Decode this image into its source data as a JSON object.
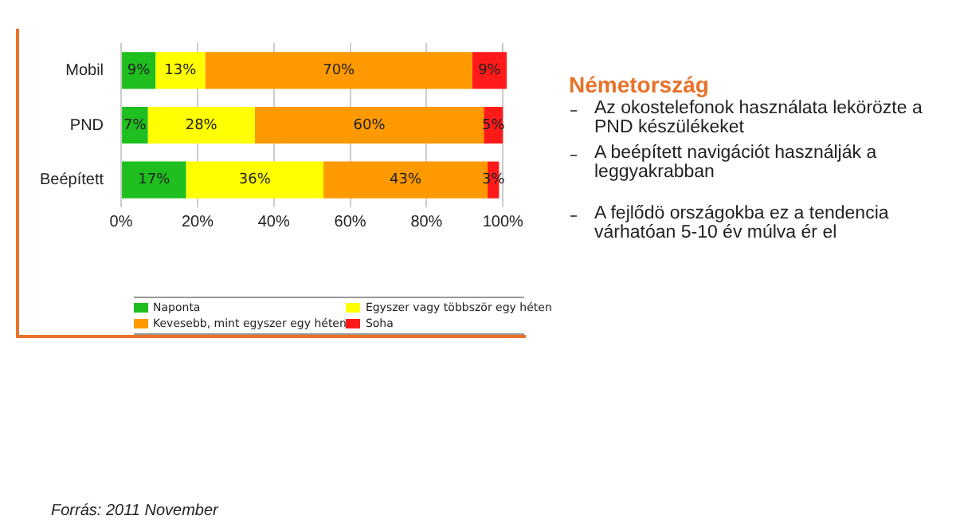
{
  "chart_data": {
    "type": "bar",
    "orientation": "horizontal",
    "stacked": true,
    "title": "Németország",
    "categories": [
      "Mobil",
      "PND",
      "Beépített"
    ],
    "series": [
      {
        "name": "Naponta",
        "color": "#1fbf1f",
        "values": [
          9,
          7,
          17
        ]
      },
      {
        "name": "Egyszer vagy többször egy héten",
        "color": "#ffff00",
        "values": [
          13,
          28,
          36
        ]
      },
      {
        "name": "Kevesebb, mint egyszer egy héten",
        "color": "#ff9900",
        "values": [
          70,
          60,
          43
        ]
      },
      {
        "name": "Soha",
        "color": "#ff1a1a",
        "values": [
          9,
          5,
          3
        ]
      }
    ],
    "xlim": [
      0,
      101
    ],
    "xticks": [
      {
        "value": 0,
        "label": "0%"
      },
      {
        "value": 20,
        "label": "20%"
      },
      {
        "value": 40,
        "label": "40%"
      },
      {
        "value": 60,
        "label": "60%"
      },
      {
        "value": 80,
        "label": "80%"
      },
      {
        "value": 100,
        "label": "100%"
      }
    ],
    "grid": "x",
    "legend": "bottom",
    "value_labels": [
      [
        "9%",
        "7%",
        "17%"
      ],
      [
        "13%",
        "28%",
        "36%"
      ],
      [
        "70%",
        "60%",
        "43%"
      ],
      [
        "9%",
        "5%",
        "3%"
      ]
    ],
    "annotations": [
      "Az okostelefonok használata lekörözte a PND készülékeket",
      "A beépített navigációt használják a leggyakrabban",
      "A fejlődö országokba ez a tendencia várhatóan 5-10 év múlva ér el",
      "Forrás: 2011 November"
    ]
  }
}
